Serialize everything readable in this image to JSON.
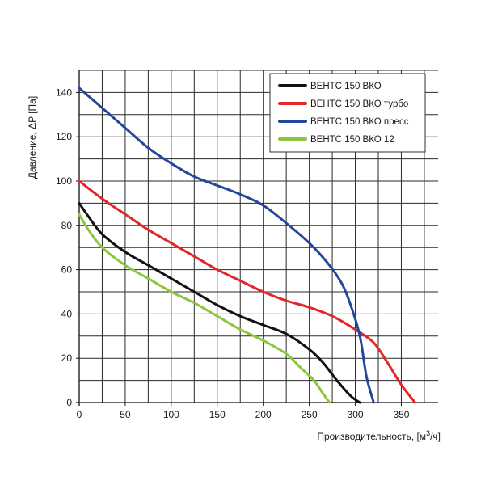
{
  "chart_data": {
    "type": "line",
    "title": "",
    "xlabel_main": "Производительность, [м",
    "xlabel_sup": "3",
    "xlabel_tail": "/ч]",
    "ylabel": "Давление, ΔP [Па]",
    "xlim": [
      0,
      390
    ],
    "ylim": [
      0,
      150
    ],
    "x_ticks": [
      0,
      50,
      100,
      150,
      200,
      250,
      300,
      350
    ],
    "y_ticks": [
      0,
      20,
      40,
      60,
      80,
      100,
      120,
      140
    ],
    "grid": true,
    "grid_x_step": 25,
    "grid_y_step": 10,
    "legend_position": "top-right",
    "series": [
      {
        "name": "ВЕНТС 150 ВКО",
        "color": "#111111",
        "points": [
          [
            0,
            90
          ],
          [
            10,
            84
          ],
          [
            25,
            76
          ],
          [
            50,
            68
          ],
          [
            75,
            62
          ],
          [
            100,
            56
          ],
          [
            125,
            50
          ],
          [
            150,
            44
          ],
          [
            175,
            39
          ],
          [
            200,
            35
          ],
          [
            225,
            31
          ],
          [
            250,
            24
          ],
          [
            265,
            18
          ],
          [
            280,
            10
          ],
          [
            295,
            3
          ],
          [
            305,
            0
          ]
        ]
      },
      {
        "name": "ВЕНТС 150 ВКО турбо",
        "color": "#e3262a",
        "points": [
          [
            0,
            100
          ],
          [
            25,
            92
          ],
          [
            50,
            85
          ],
          [
            75,
            78
          ],
          [
            100,
            72
          ],
          [
            125,
            66
          ],
          [
            150,
            60
          ],
          [
            175,
            55
          ],
          [
            200,
            50
          ],
          [
            225,
            46
          ],
          [
            250,
            43
          ],
          [
            275,
            39
          ],
          [
            300,
            33
          ],
          [
            320,
            27
          ],
          [
            335,
            18
          ],
          [
            350,
            8
          ],
          [
            365,
            0
          ]
        ]
      },
      {
        "name": "ВЕНТС 150 ВКО пресс",
        "color": "#23479a",
        "points": [
          [
            0,
            142
          ],
          [
            25,
            133
          ],
          [
            50,
            124
          ],
          [
            75,
            115
          ],
          [
            100,
            108
          ],
          [
            125,
            102
          ],
          [
            150,
            98
          ],
          [
            175,
            94
          ],
          [
            200,
            89
          ],
          [
            225,
            81
          ],
          [
            250,
            72
          ],
          [
            270,
            63
          ],
          [
            285,
            54
          ],
          [
            295,
            44
          ],
          [
            305,
            30
          ],
          [
            312,
            12
          ],
          [
            320,
            0
          ]
        ]
      },
      {
        "name": "ВЕНТС 150 ВКО 12",
        "color": "#8cc63f",
        "points": [
          [
            0,
            85
          ],
          [
            10,
            78
          ],
          [
            25,
            70
          ],
          [
            50,
            62
          ],
          [
            75,
            56
          ],
          [
            100,
            50
          ],
          [
            125,
            45
          ],
          [
            150,
            39
          ],
          [
            175,
            33
          ],
          [
            200,
            28
          ],
          [
            225,
            22
          ],
          [
            240,
            16
          ],
          [
            255,
            10
          ],
          [
            265,
            4
          ],
          [
            272,
            0
          ]
        ]
      }
    ]
  }
}
